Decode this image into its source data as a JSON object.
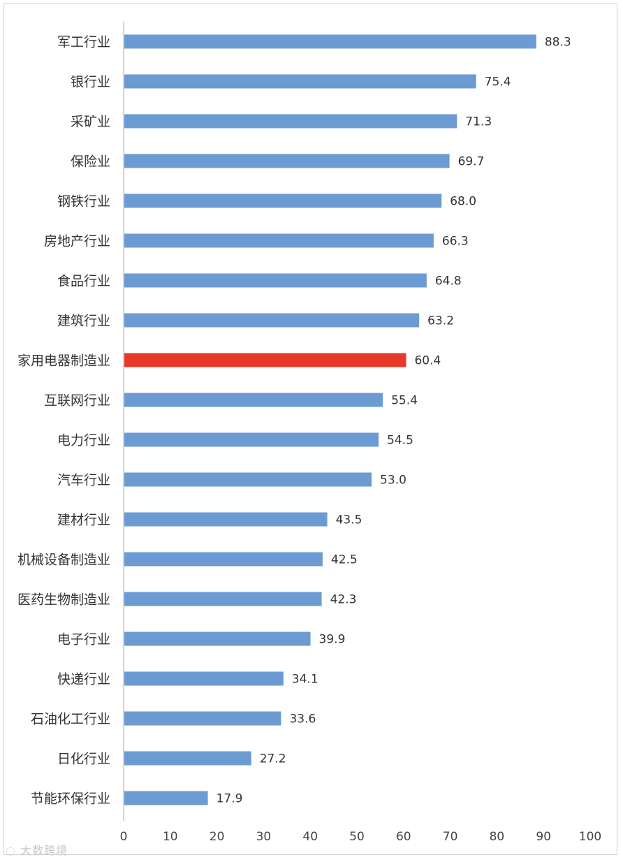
{
  "chart_data": {
    "type": "bar",
    "orientation": "horizontal",
    "categories": [
      "军工行业",
      "银行业",
      "采矿业",
      "保险业",
      "钢铁行业",
      "房地产行业",
      "食品行业",
      "建筑行业",
      "家用电器制造业",
      "互联网行业",
      "电力行业",
      "汽车行业",
      "建材行业",
      "机械设备制造业",
      "医药生物制造业",
      "电子行业",
      "快递行业",
      "石油化工行业",
      "日化行业",
      "节能环保行业"
    ],
    "values": [
      88.3,
      75.4,
      71.3,
      69.7,
      68.0,
      66.3,
      64.8,
      63.2,
      60.4,
      55.4,
      54.5,
      53.0,
      43.5,
      42.5,
      42.3,
      39.9,
      34.1,
      33.6,
      27.2,
      17.9
    ],
    "value_labels": [
      "88.3",
      "75.4",
      "71.3",
      "69.7",
      "68.0",
      "66.3",
      "64.8",
      "63.2",
      "60.4",
      "55.4",
      "54.5",
      "53.0",
      "43.5",
      "42.5",
      "42.3",
      "39.9",
      "34.1",
      "33.6",
      "27.2",
      "17.9"
    ],
    "highlight_category": "家用电器制造业",
    "xlim": [
      0,
      100
    ],
    "x_ticks": [
      "0",
      "10",
      "20",
      "30",
      "40",
      "50",
      "60",
      "70",
      "80",
      "90",
      "100"
    ],
    "grid": false,
    "colors": {
      "bar": "#6b9bd2",
      "highlight": "#e8382a",
      "axis": "#c6c6c6"
    }
  },
  "watermark": {
    "text": "大数跨境",
    "icon": "speech-bubble-logo-icon"
  }
}
